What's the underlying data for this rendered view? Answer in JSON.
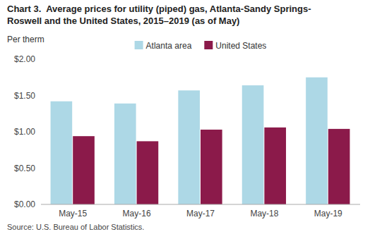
{
  "chart_data": {
    "type": "bar",
    "title": "Chart 3.  Average prices for utility (piped) gas, Atlanta-Sandy Springs-\nRoswell and the United States, 2015–2019 (as of May)",
    "ylabel": "Per therm",
    "source": "Source: U.S. Bureau of Labor Statistics.",
    "categories": [
      "May-15",
      "May-16",
      "May-17",
      "May-18",
      "May-19"
    ],
    "series": [
      {
        "name": "Atlanta area",
        "color": "#ADD8E6",
        "values": [
          1.42,
          1.39,
          1.57,
          1.64,
          1.75
        ]
      },
      {
        "name": "United States",
        "color": "#8B1A4A",
        "values": [
          0.94,
          0.87,
          1.03,
          1.06,
          1.04
        ]
      }
    ],
    "ylim": [
      0.0,
      2.0
    ],
    "yticks": [
      {
        "value": 0.0,
        "label": "$0.00"
      },
      {
        "value": 0.5,
        "label": "$0.50"
      },
      {
        "value": 1.0,
        "label": "$1.00"
      },
      {
        "value": 1.5,
        "label": "$1.50"
      },
      {
        "value": 2.0,
        "label": "$2.00"
      }
    ],
    "grid": false,
    "legend": "top"
  }
}
